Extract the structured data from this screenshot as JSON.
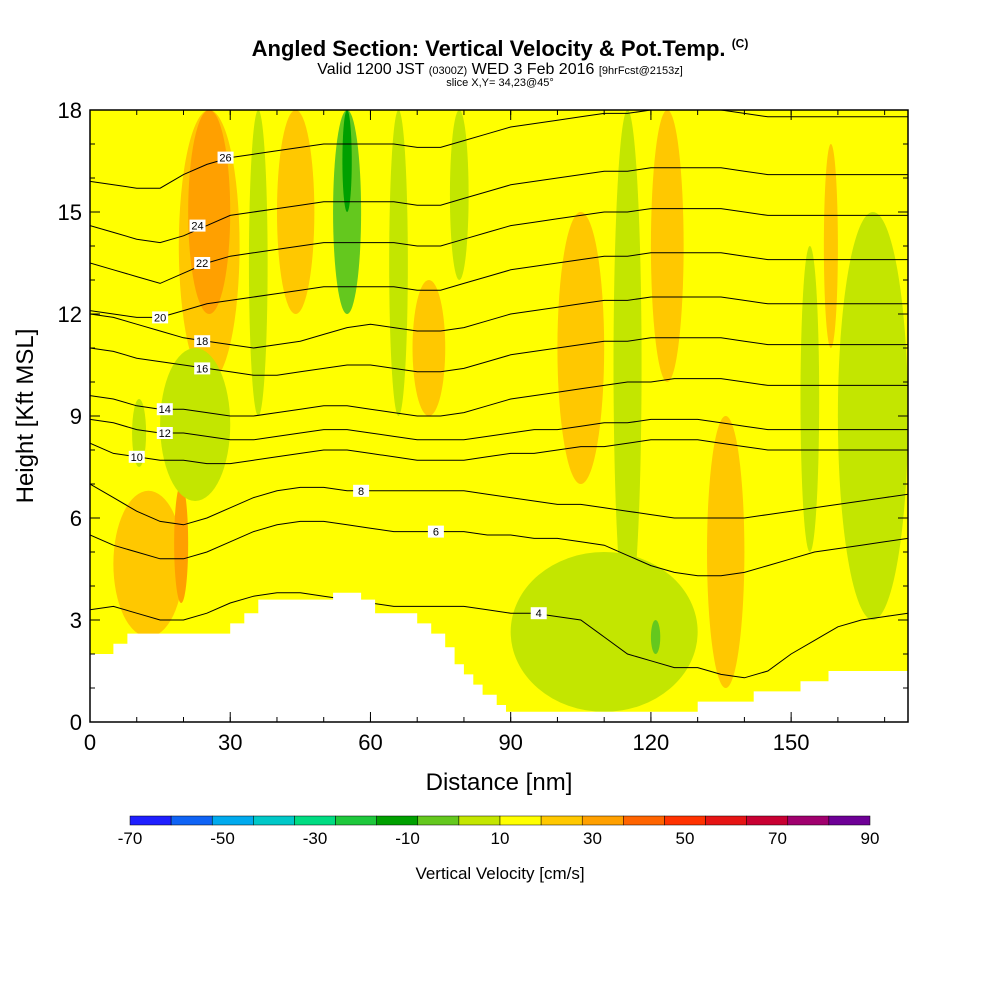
{
  "header": {
    "title": "Angled Section: Vertical Velocity & Pot.Temp.",
    "title_unit": "(C)",
    "subtitle_a": "Valid 1200 JST",
    "subtitle_b": "(0300Z)",
    "subtitle_c": "WED 3 Feb 2016",
    "subtitle_d": "[9hrFcst@2153z]",
    "slice": "slice X,Y= 34,23@45°"
  },
  "chart_data": {
    "type": "heatmap",
    "title": "Angled Section: Vertical Velocity & Pot.Temp. (C)",
    "xlabel": "Distance [nm]",
    "ylabel": "Height [Kft MSL]",
    "xlim": [
      0,
      175
    ],
    "ylim": [
      0,
      18
    ],
    "x_ticks": [
      "0",
      "30",
      "60",
      "90",
      "120",
      "150"
    ],
    "y_ticks": [
      "0",
      "3",
      "6",
      "9",
      "12",
      "15",
      "18"
    ],
    "colorbar": {
      "title": "Vertical Velocity [cm/s]",
      "tick_labels": [
        "-70",
        "-50",
        "-30",
        "-10",
        "10",
        "30",
        "50",
        "70",
        "90"
      ],
      "colors": [
        "#1f1fff",
        "#0f63f5",
        "#00aaee",
        "#00c8c8",
        "#00dc82",
        "#1ec83c",
        "#00a000",
        "#64c81e",
        "#c3e600",
        "#ffff00",
        "#ffc800",
        "#ffa000",
        "#ff6400",
        "#ff3200",
        "#e61414",
        "#c80032",
        "#a0006e",
        "#6e0096"
      ]
    },
    "terrain_profile": [
      [
        0,
        2
      ],
      [
        5,
        2
      ],
      [
        5,
        2.3
      ],
      [
        8,
        2.3
      ],
      [
        8,
        2.6
      ],
      [
        30,
        2.6
      ],
      [
        30,
        2.9
      ],
      [
        33,
        2.9
      ],
      [
        33,
        3.2
      ],
      [
        36,
        3.2
      ],
      [
        36,
        3.6
      ],
      [
        52,
        3.6
      ],
      [
        52,
        3.8
      ],
      [
        58,
        3.8
      ],
      [
        58,
        3.6
      ],
      [
        61,
        3.6
      ],
      [
        61,
        3.2
      ],
      [
        70,
        3.2
      ],
      [
        70,
        2.9
      ],
      [
        73,
        2.9
      ],
      [
        73,
        2.6
      ],
      [
        76,
        2.6
      ],
      [
        76,
        2.2
      ],
      [
        78,
        2.2
      ],
      [
        78,
        1.7
      ],
      [
        80,
        1.7
      ],
      [
        80,
        1.4
      ],
      [
        82,
        1.4
      ],
      [
        82,
        1.1
      ],
      [
        84,
        1.1
      ],
      [
        84,
        0.8
      ],
      [
        87,
        0.8
      ],
      [
        87,
        0.5
      ],
      [
        89,
        0.5
      ],
      [
        89,
        0.3
      ],
      [
        130,
        0.3
      ],
      [
        130,
        0.6
      ],
      [
        142,
        0.6
      ],
      [
        142,
        0.9
      ],
      [
        152,
        0.9
      ],
      [
        152,
        1.2
      ],
      [
        158,
        1.2
      ],
      [
        158,
        1.5
      ],
      [
        175,
        1.5
      ]
    ],
    "velocity_features": [
      {
        "x": [
          5,
          20
        ],
        "y": [
          2.5,
          6.8
        ],
        "value": 15
      },
      {
        "x": [
          9,
          12
        ],
        "y": [
          7.5,
          9.5
        ],
        "value": -5
      },
      {
        "x": [
          18,
          21
        ],
        "y": [
          3.5,
          7
        ],
        "value": 25
      },
      {
        "x": [
          19,
          32
        ],
        "y": [
          10,
          18
        ],
        "value": 15
      },
      {
        "x": [
          21,
          30
        ],
        "y": [
          12,
          18
        ],
        "value": 25
      },
      {
        "x": [
          15,
          30
        ],
        "y": [
          6.5,
          11
        ],
        "value": -5
      },
      {
        "x": [
          34,
          38
        ],
        "y": [
          9,
          18
        ],
        "value": -5
      },
      {
        "x": [
          40,
          48
        ],
        "y": [
          12,
          18
        ],
        "value": 15
      },
      {
        "x": [
          52,
          58
        ],
        "y": [
          12,
          18
        ],
        "value": -15
      },
      {
        "x": [
          54,
          56
        ],
        "y": [
          15,
          18
        ],
        "value": -25
      },
      {
        "x": [
          64,
          68
        ],
        "y": [
          9,
          18
        ],
        "value": -5
      },
      {
        "x": [
          69,
          76
        ],
        "y": [
          9,
          13
        ],
        "value": 15
      },
      {
        "x": [
          77,
          81
        ],
        "y": [
          13,
          18
        ],
        "value": -5
      },
      {
        "x": [
          100,
          110
        ],
        "y": [
          7,
          15
        ],
        "value": 15
      },
      {
        "x": [
          112,
          118
        ],
        "y": [
          3,
          18
        ],
        "value": -5
      },
      {
        "x": [
          120,
          127
        ],
        "y": [
          10,
          18
        ],
        "value": 15
      },
      {
        "x": [
          132,
          140
        ],
        "y": [
          1,
          9
        ],
        "value": 15
      },
      {
        "x": [
          152,
          156
        ],
        "y": [
          5,
          14
        ],
        "value": -5
      },
      {
        "x": [
          157,
          160
        ],
        "y": [
          11,
          17
        ],
        "value": 15
      },
      {
        "x": [
          160,
          175
        ],
        "y": [
          3,
          15
        ],
        "value": -5
      },
      {
        "x": [
          90,
          130
        ],
        "y": [
          0.3,
          5
        ],
        "value": -5
      },
      {
        "x": [
          120,
          122
        ],
        "y": [
          2,
          3
        ],
        "value": -15
      }
    ],
    "isentropes": [
      {
        "label": "4",
        "y": [
          3.3,
          3.4,
          3.2,
          3.0,
          3.0,
          3.2,
          3.5,
          3.7,
          3.8,
          3.8,
          3.7,
          3.6,
          3.5,
          3.4,
          3.4,
          3.4,
          3.4,
          3.3,
          3.2,
          3.2,
          3.1,
          3.0,
          2.5,
          2.0,
          1.8,
          1.6,
          1.6,
          1.4,
          1.3,
          1.5,
          2.0,
          2.4,
          2.8,
          3.0,
          3.1,
          3.2
        ],
        "label_x": 96
      },
      {
        "label": "6",
        "y": [
          5.5,
          5.2,
          5.0,
          4.8,
          4.8,
          5.0,
          5.3,
          5.6,
          5.8,
          5.9,
          5.9,
          5.8,
          5.7,
          5.6,
          5.6,
          5.6,
          5.6,
          5.5,
          5.5,
          5.4,
          5.4,
          5.3,
          5.2,
          4.9,
          4.6,
          4.4,
          4.3,
          4.3,
          4.4,
          4.6,
          4.8,
          5.0,
          5.1,
          5.2,
          5.3,
          5.4
        ],
        "label_x": 74
      },
      {
        "label": "8",
        "y": [
          7.0,
          6.6,
          6.2,
          5.9,
          5.8,
          6.0,
          6.3,
          6.6,
          6.8,
          6.9,
          6.9,
          6.8,
          6.8,
          6.8,
          6.8,
          6.8,
          6.8,
          6.7,
          6.6,
          6.5,
          6.4,
          6.4,
          6.3,
          6.2,
          6.1,
          6.0,
          6.0,
          6.0,
          6.0,
          6.1,
          6.2,
          6.3,
          6.4,
          6.5,
          6.6,
          6.7
        ],
        "label_x": 58
      },
      {
        "label": "10",
        "y": [
          8.2,
          7.9,
          7.8,
          7.7,
          7.7,
          7.6,
          7.6,
          7.7,
          7.8,
          7.9,
          8.0,
          8.0,
          7.9,
          7.8,
          7.7,
          7.7,
          7.7,
          7.8,
          7.9,
          7.9,
          8.0,
          8.1,
          8.1,
          8.2,
          8.3,
          8.3,
          8.3,
          8.2,
          8.1,
          8.0,
          8.0,
          8.0,
          8.0,
          8.0,
          8.0,
          8.0
        ],
        "label_x": 10
      },
      {
        "label": "12",
        "y": [
          8.9,
          8.8,
          8.6,
          8.5,
          8.5,
          8.4,
          8.3,
          8.3,
          8.4,
          8.5,
          8.6,
          8.6,
          8.5,
          8.4,
          8.3,
          8.3,
          8.3,
          8.4,
          8.5,
          8.6,
          8.6,
          8.7,
          8.8,
          8.8,
          8.9,
          8.9,
          8.9,
          8.8,
          8.7,
          8.6,
          8.6,
          8.6,
          8.6,
          8.6,
          8.6,
          8.6
        ],
        "label_x": 16
      },
      {
        "label": "14",
        "y": [
          9.6,
          9.5,
          9.3,
          9.2,
          9.2,
          9.1,
          9.0,
          9.0,
          9.1,
          9.2,
          9.3,
          9.3,
          9.2,
          9.1,
          9.0,
          9.0,
          9.1,
          9.3,
          9.5,
          9.6,
          9.7,
          9.8,
          9.9,
          10.0,
          10.0,
          10.1,
          10.1,
          10.1,
          10.0,
          9.9,
          9.9,
          9.9,
          9.9,
          9.9,
          9.9,
          9.9
        ],
        "label_x": 16
      },
      {
        "label": "16",
        "y": [
          11.0,
          10.9,
          10.7,
          10.6,
          10.5,
          10.4,
          10.3,
          10.2,
          10.2,
          10.3,
          10.4,
          10.5,
          10.5,
          10.4,
          10.3,
          10.3,
          10.4,
          10.6,
          10.8,
          10.9,
          11.0,
          11.1,
          11.2,
          11.2,
          11.3,
          11.3,
          11.3,
          11.3,
          11.2,
          11.1,
          11.1,
          11.1,
          11.1,
          11.1,
          11.1,
          11.1
        ],
        "label_x": 24
      },
      {
        "label": "18",
        "y": [
          12.0,
          11.9,
          11.7,
          11.5,
          11.3,
          11.2,
          11.1,
          11.0,
          11.1,
          11.2,
          11.4,
          11.6,
          11.7,
          11.6,
          11.5,
          11.5,
          11.6,
          11.8,
          12.0,
          12.1,
          12.2,
          12.3,
          12.4,
          12.4,
          12.5,
          12.5,
          12.5,
          12.5,
          12.4,
          12.3,
          12.3,
          12.3,
          12.3,
          12.3,
          12.3,
          12.3
        ],
        "label_x": 24
      },
      {
        "label": "20",
        "y": [
          12.1,
          12.0,
          11.9,
          11.9,
          12.1,
          12.3,
          12.4,
          12.5,
          12.6,
          12.7,
          12.8,
          12.8,
          12.8,
          12.8,
          12.7,
          12.7,
          12.9,
          13.1,
          13.3,
          13.4,
          13.5,
          13.6,
          13.7,
          13.7,
          13.8,
          13.8,
          13.8,
          13.8,
          13.7,
          13.6,
          13.6,
          13.6,
          13.6,
          13.6,
          13.6,
          13.6
        ],
        "label_x": 15
      },
      {
        "label": "22",
        "y": [
          13.5,
          13.3,
          13.1,
          12.9,
          13.2,
          13.5,
          13.7,
          13.8,
          13.9,
          14.0,
          14.1,
          14.1,
          14.1,
          14.1,
          14.0,
          14.0,
          14.2,
          14.4,
          14.6,
          14.7,
          14.8,
          14.9,
          15.0,
          15.0,
          15.1,
          15.1,
          15.1,
          15.1,
          15.0,
          14.9,
          14.9,
          14.9,
          14.9,
          14.9,
          14.9,
          14.9
        ],
        "label_x": 24
      },
      {
        "label": "24",
        "y": [
          14.6,
          14.4,
          14.2,
          14.1,
          14.3,
          14.6,
          14.9,
          15.0,
          15.1,
          15.2,
          15.3,
          15.3,
          15.3,
          15.3,
          15.2,
          15.2,
          15.4,
          15.6,
          15.8,
          15.9,
          16.0,
          16.1,
          16.2,
          16.2,
          16.3,
          16.3,
          16.3,
          16.3,
          16.2,
          16.1,
          16.1,
          16.1,
          16.1,
          16.1,
          16.1,
          16.1
        ],
        "label_x": 23
      },
      {
        "label": "26",
        "y": [
          15.9,
          15.8,
          15.7,
          15.7,
          16.1,
          16.4,
          16.6,
          16.7,
          16.8,
          16.9,
          17.0,
          17.0,
          17.0,
          17.0,
          16.9,
          16.9,
          17.1,
          17.3,
          17.5,
          17.6,
          17.7,
          17.8,
          17.9,
          17.9,
          18.0,
          18.0,
          18.0,
          18.0,
          17.9,
          17.8,
          17.8,
          17.8,
          17.8,
          17.8,
          17.8,
          17.8
        ],
        "label_x": 29
      }
    ],
    "isentrope_x_step": 5
  }
}
